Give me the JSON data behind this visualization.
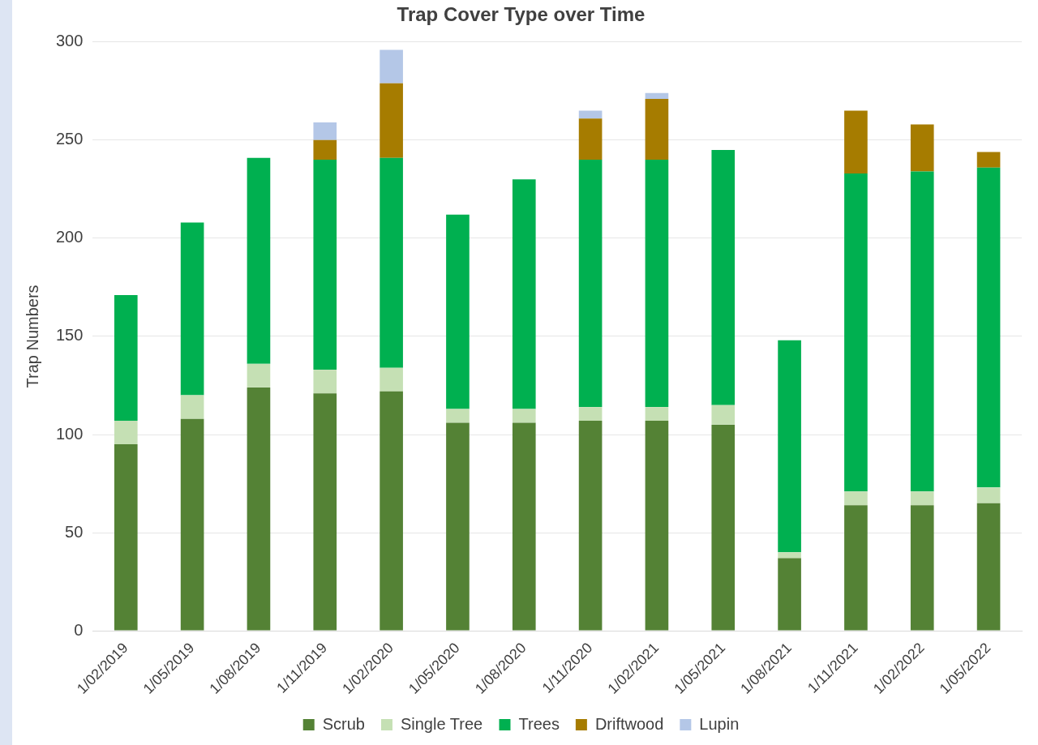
{
  "chart_data": {
    "type": "bar",
    "title": "Trap Cover Type over Time",
    "ylabel": "Trap Numbers",
    "stacked": true,
    "grid": "y",
    "legend": "bottom",
    "categories": [
      "1/02/2019",
      "1/05/2019",
      "1/08/2019",
      "1/11/2019",
      "1/02/2020",
      "1/05/2020",
      "1/08/2020",
      "1/11/2020",
      "1/02/2021",
      "1/05/2021",
      "1/08/2021",
      "1/11/2021",
      "1/02/2022",
      "1/05/2022"
    ],
    "ylim": [
      0,
      300
    ],
    "yticks": [
      0,
      50,
      100,
      150,
      200,
      250,
      300
    ],
    "series": [
      {
        "name": "Scrub",
        "color": "#548235",
        "values": [
          95,
          108,
          124,
          121,
          122,
          106,
          106,
          107,
          107,
          105,
          37,
          64,
          64,
          65
        ]
      },
      {
        "name": "Single Tree",
        "color": "#c5e0b4",
        "values": [
          12,
          12,
          12,
          12,
          12,
          7,
          7,
          7,
          7,
          10,
          3,
          7,
          7,
          8
        ]
      },
      {
        "name": "Trees",
        "color": "#00b050",
        "values": [
          64,
          88,
          105,
          107,
          107,
          99,
          117,
          126,
          126,
          130,
          108,
          162,
          163,
          163
        ]
      },
      {
        "name": "Driftwood",
        "color": "#a67c00",
        "values": [
          0,
          0,
          0,
          10,
          38,
          0,
          0,
          21,
          31,
          0,
          0,
          32,
          24,
          8
        ]
      },
      {
        "name": "Lupin",
        "color": "#b4c7e7",
        "values": [
          0,
          0,
          0,
          9,
          17,
          0,
          0,
          4,
          3,
          0,
          0,
          0,
          0,
          0
        ]
      }
    ]
  }
}
